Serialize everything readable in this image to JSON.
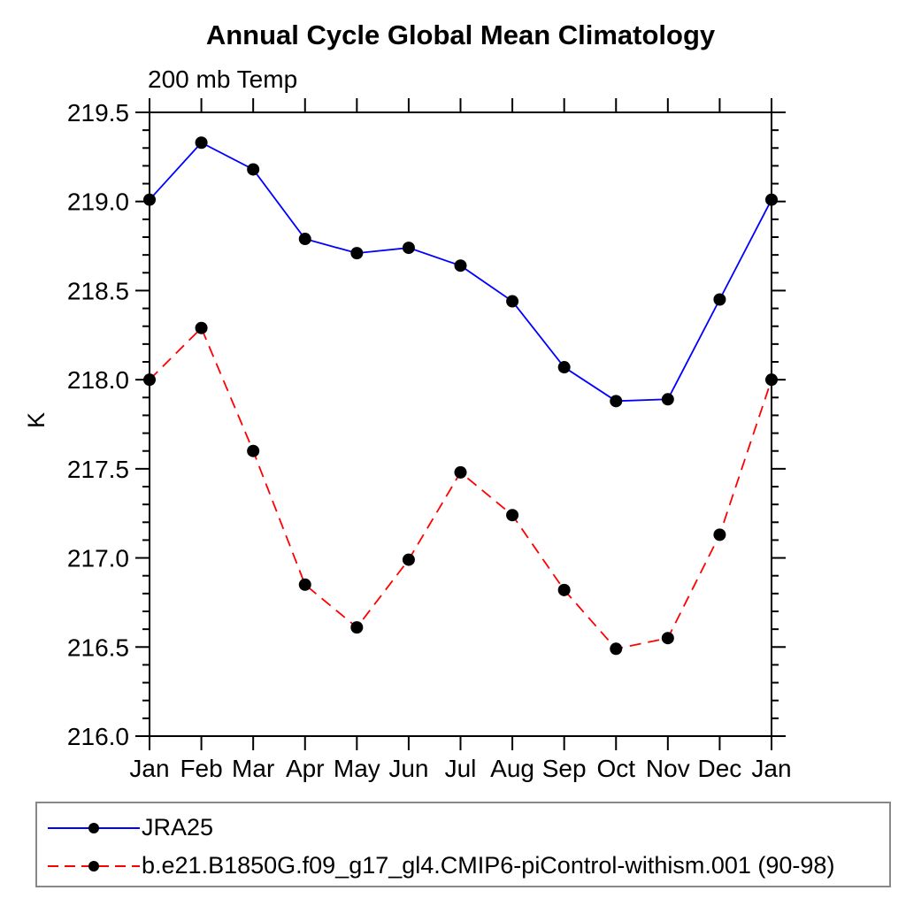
{
  "chart": {
    "title": "Annual Cycle Global Mean Climatology",
    "subtitle": "200 mb Temp",
    "ylabel": "K"
  },
  "chart_data": {
    "type": "line",
    "title": "Annual Cycle Global Mean Climatology",
    "subtitle": "200 mb Temp",
    "xlabel": "",
    "ylabel": "K",
    "categories": [
      "Jan",
      "Feb",
      "Mar",
      "Apr",
      "May",
      "Jun",
      "Jul",
      "Aug",
      "Sep",
      "Oct",
      "Nov",
      "Dec",
      "Jan"
    ],
    "ylim": [
      216.0,
      219.5
    ],
    "ytick_labels": [
      "216.0",
      "216.5",
      "217.0",
      "217.5",
      "218.0",
      "218.5",
      "219.0",
      "219.5"
    ],
    "ytick_major": 0.5,
    "ytick_minor": 0.1,
    "grid": false,
    "legend_position": "bottom",
    "frame_color": "#000000",
    "marker_color": "#000000",
    "series": [
      {
        "name": "JRA25",
        "color": "#0000ff",
        "style": "solid",
        "marker": "circle",
        "values": [
          219.01,
          219.33,
          219.18,
          218.79,
          218.71,
          218.74,
          218.64,
          218.44,
          218.07,
          217.88,
          217.89,
          218.45,
          219.01
        ]
      },
      {
        "name": "b.e21.B1850G.f09_g17_gl4.CMIP6-piControl-withism.001 (90-98)",
        "color": "#ff0000",
        "style": "dashed",
        "marker": "circle",
        "values": [
          218.0,
          218.29,
          217.6,
          216.85,
          216.61,
          216.99,
          217.48,
          217.24,
          216.82,
          216.49,
          216.55,
          217.13,
          218.0
        ]
      }
    ]
  }
}
